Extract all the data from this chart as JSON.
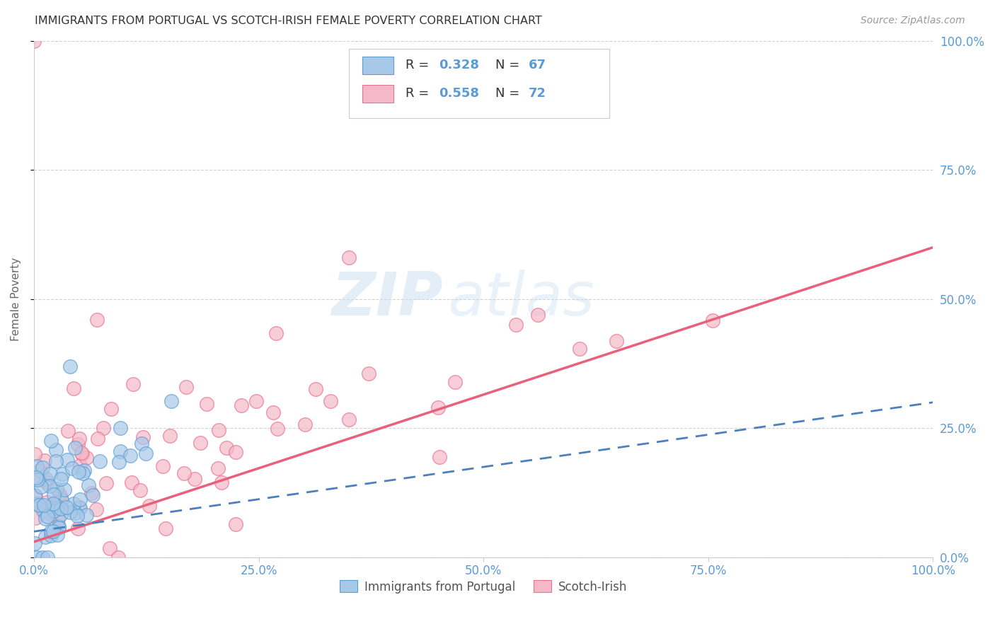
{
  "title": "IMMIGRANTS FROM PORTUGAL VS SCOTCH-IRISH FEMALE POVERTY CORRELATION CHART",
  "source": "Source: ZipAtlas.com",
  "ylabel": "Female Poverty",
  "ytick_values": [
    0.0,
    0.25,
    0.5,
    0.75,
    1.0
  ],
  "xtick_values": [
    0.0,
    0.25,
    0.5,
    0.75,
    1.0
  ],
  "legend_r1": "0.328",
  "legend_n1": "67",
  "legend_r2": "0.558",
  "legend_n2": "72",
  "color_blue_fill": "#a8c8e8",
  "color_blue_edge": "#5a9fd4",
  "color_pink_fill": "#f4b8c8",
  "color_pink_edge": "#e87090",
  "color_blue_line": "#4a7fc0",
  "color_pink_line": "#e8607a",
  "color_axis_labels": "#5b9bd5",
  "color_title": "#333333",
  "color_source": "#999999",
  "color_grid": "#cccccc",
  "color_watermark": "#cce0f0",
  "background_color": "#ffffff",
  "N_blue": 67,
  "N_pink": 72,
  "xlim": [
    0.0,
    1.0
  ],
  "ylim": [
    0.0,
    1.0
  ],
  "blue_line_start_x": 0.0,
  "blue_line_end_x": 1.0,
  "blue_line_start_y": 0.05,
  "blue_line_end_y": 0.3,
  "pink_line_start_x": 0.0,
  "pink_line_end_x": 1.0,
  "pink_line_start_y": 0.03,
  "pink_line_end_y": 0.6
}
